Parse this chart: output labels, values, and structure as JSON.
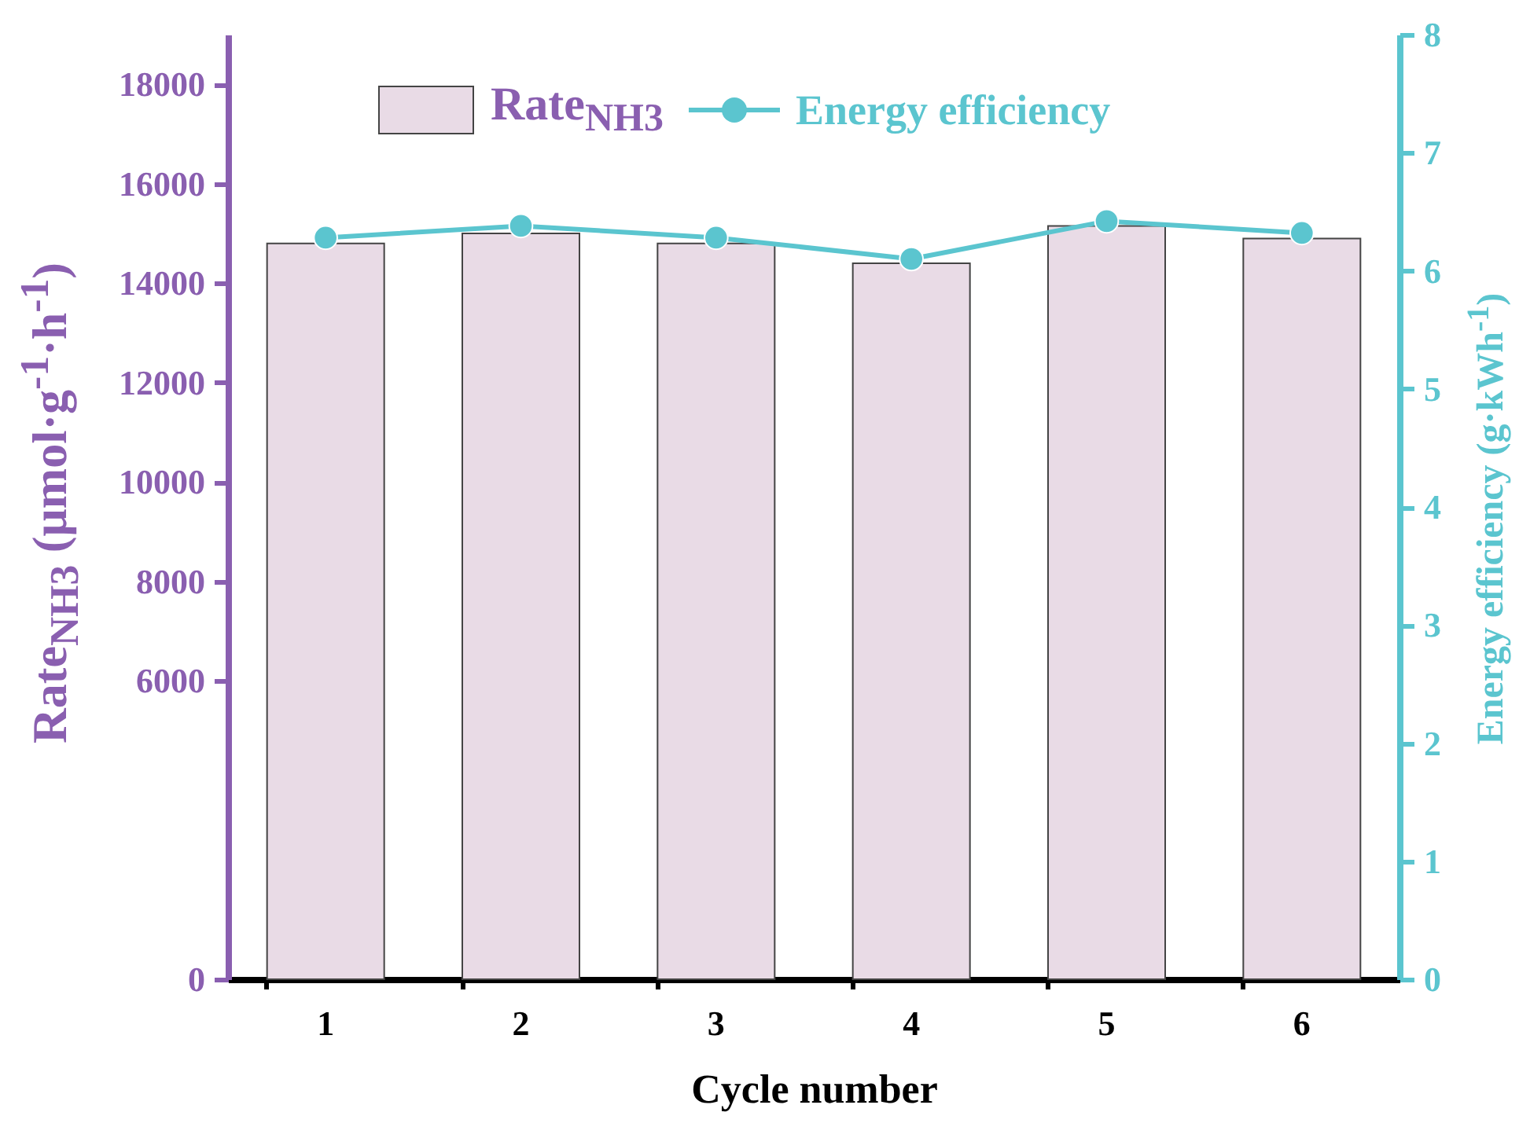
{
  "chart_data": {
    "type": "bar",
    "xlabel": "Cycle number",
    "ylabel": "Rate$_{NH3}$ (μmol·g$^{-1}$·h$^{-1}$)",
    "y2label": "Energy efficiency (g·kWh$^{-1}$)",
    "categories": [
      "1",
      "2",
      "3",
      "4",
      "5",
      "6"
    ],
    "series": [
      {
        "name": "Rate$_{NH3}$",
        "color": "#e9dbe6",
        "values": [
          14800,
          15000,
          14800,
          14400,
          15150,
          14900
        ]
      },
      {
        "name": "Energy efficiency",
        "type": "line",
        "axis": "y2",
        "color": "#5bc5cf",
        "values": [
          6.28,
          6.38,
          6.28,
          6.1,
          6.42,
          6.32
        ]
      }
    ],
    "ylim": [
      0,
      19000
    ],
    "yticks": [
      0,
      6000,
      8000,
      10000,
      12000,
      14000,
      16000,
      18000
    ],
    "y2lim": [
      0,
      8
    ],
    "y2ticks": [
      0,
      1,
      2,
      3,
      4,
      5,
      6,
      7,
      8
    ],
    "marker": "circle",
    "legend": "top",
    "grid": false
  }
}
